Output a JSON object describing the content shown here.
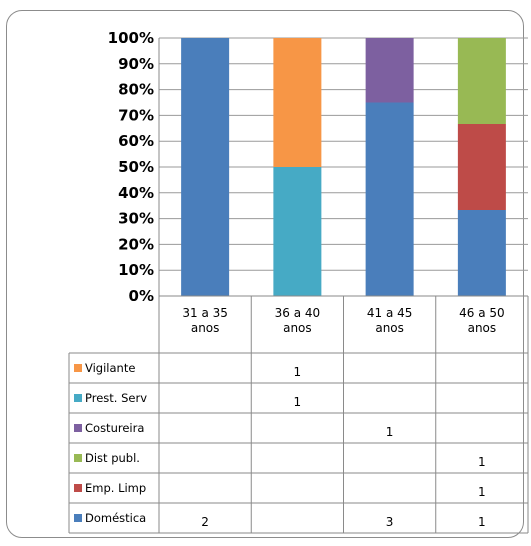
{
  "chart_data": {
    "type": "bar",
    "stacked": true,
    "percent": true,
    "title": "",
    "xlabel": "",
    "ylabel": "",
    "ylim": [
      0,
      100
    ],
    "yticks": [
      "0%",
      "10%",
      "20%",
      "30%",
      "40%",
      "50%",
      "60%",
      "70%",
      "80%",
      "90%",
      "100%"
    ],
    "categories": [
      "31 a 35 anos",
      "36 a 40 anos",
      "41 a 45 anos",
      "46 a 50 anos"
    ],
    "category_lines": [
      [
        "31 a 35",
        "anos"
      ],
      [
        "36 a 40",
        "anos"
      ],
      [
        "41 a 45",
        "anos"
      ],
      [
        "46 a 50",
        "anos"
      ]
    ],
    "series": [
      {
        "name": "Doméstica",
        "color": "#4a7ebb",
        "values": [
          2,
          null,
          3,
          1
        ]
      },
      {
        "name": "Emp. Limp",
        "color": "#be4b48",
        "values": [
          null,
          null,
          null,
          1
        ]
      },
      {
        "name": "Dist publ.",
        "color": "#98b954",
        "values": [
          null,
          null,
          null,
          1
        ]
      },
      {
        "name": "Costureira",
        "color": "#7d60a0",
        "values": [
          null,
          null,
          1,
          null
        ]
      },
      {
        "name": "Prest. Serv",
        "color": "#46aac5",
        "values": [
          null,
          1,
          null,
          null
        ]
      },
      {
        "name": "Vigilante",
        "color": "#f79646",
        "values": [
          null,
          1,
          null,
          null
        ]
      }
    ],
    "grid": true,
    "legend": "data-table-left"
  }
}
